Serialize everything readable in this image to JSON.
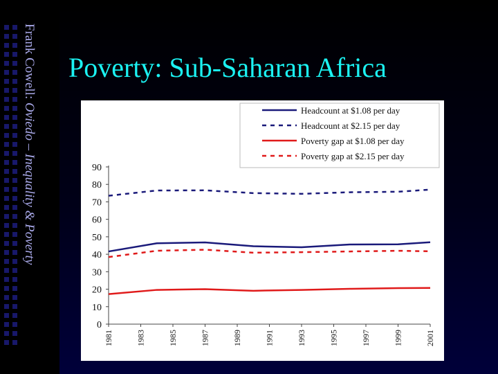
{
  "sidebar": {
    "author": "Frank Cowell: ",
    "course": "Oviedo – Inequality & Poverty"
  },
  "slide": {
    "title": "Poverty: Sub-Saharan Africa"
  },
  "chart_data": {
    "type": "line",
    "x": [
      1981,
      1984,
      1987,
      1990,
      1993,
      1996,
      1999,
      2001
    ],
    "x_tick_labels": [
      "1981",
      "1983",
      "1985",
      "1987",
      "1989",
      "1991",
      "1993",
      "1995",
      "1997",
      "1999",
      "2001"
    ],
    "ylim": [
      0,
      90
    ],
    "y_ticks": [
      0,
      10,
      20,
      30,
      40,
      50,
      60,
      70,
      80,
      90
    ],
    "legend_position": "top-right",
    "series": [
      {
        "name": "Headcount at $1.08 per day",
        "color": "#1a1a7a",
        "dash": false,
        "values": [
          41.6,
          46.3,
          46.8,
          44.6,
          44.0,
          45.6,
          45.7,
          46.9
        ]
      },
      {
        "name": "Headcount at $2.15 per day",
        "color": "#1a1a7a",
        "dash": true,
        "values": [
          73.5,
          76.5,
          76.6,
          75.0,
          74.6,
          75.5,
          75.8,
          77.0
        ]
      },
      {
        "name": "Poverty gap at $1.08 per day",
        "color": "#e01a1a",
        "dash": false,
        "values": [
          17.2,
          19.6,
          20.0,
          19.1,
          19.6,
          20.2,
          20.6,
          20.7
        ]
      },
      {
        "name": "Poverty gap at $2.15 per day",
        "color": "#e01a1a",
        "dash": true,
        "values": [
          38.4,
          42.0,
          42.6,
          40.9,
          41.2,
          41.6,
          42.0,
          41.7
        ]
      }
    ]
  }
}
